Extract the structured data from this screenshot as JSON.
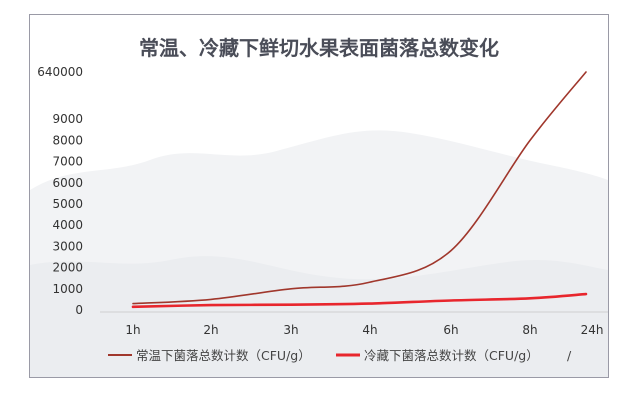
{
  "chart_data": {
    "type": "line",
    "title": "常温、冷藏下鲜切水果表面菌落总数变化",
    "xlabel": "",
    "ylabel": "",
    "categories": [
      "1h",
      "2h",
      "3h",
      "4h",
      "6h",
      "8h",
      "24h"
    ],
    "y_ticks": [
      "0",
      "1000",
      "2000",
      "3000",
      "4000",
      "5000",
      "6000",
      "7000",
      "8000",
      "9000",
      "640000"
    ],
    "y_tick_values": [
      0,
      1000,
      2000,
      3000,
      4000,
      5000,
      6000,
      7000,
      8000,
      9000,
      640000
    ],
    "y_scale": "broken: linear 0–9000, then a single break tick at 640000",
    "ylim": [
      0,
      640000
    ],
    "grid": false,
    "legend_position": "bottom",
    "series": [
      {
        "name": "常温下菌落总数计数（CFU/g）",
        "color": "#a0372c",
        "values": [
          300,
          500,
          1000,
          1300,
          2800,
          8000,
          640000
        ]
      },
      {
        "name": "冷藏下菌落总数计数（CFU/g）",
        "color": "#e8262d",
        "values": [
          150,
          230,
          250,
          300,
          450,
          550,
          750
        ]
      }
    ],
    "legend_extra_mark": "/"
  }
}
